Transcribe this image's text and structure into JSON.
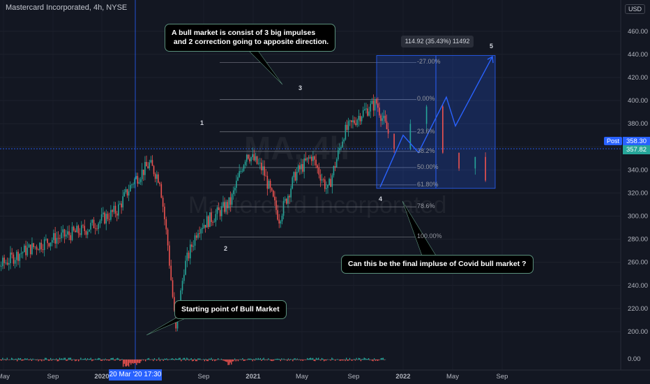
{
  "header": {
    "title": "Mastercard Incorporated, 4h, NYSE"
  },
  "currency": "USD",
  "watermark": {
    "ticker": "MA, 4h",
    "name": "Mastercard Incorporated"
  },
  "price_tags": {
    "post_label": "Post",
    "post_price": "358.30",
    "last_price": "357.82"
  },
  "crosshair_date": "20 Mar '20   17:30",
  "measure_label": "114.92 (35.43%) 11492",
  "callouts": {
    "top": "A bull market is consist of 3 big impulses\n and 2 correction going to apposite direction.",
    "bottom_left": "Starting point of Bull Market",
    "right": "Can this be the final impluse of Covid bull market ?"
  },
  "wave_labels": [
    "1",
    "2",
    "3",
    "4",
    "5"
  ],
  "fib_levels": [
    {
      "label": "-27.00%",
      "value": 433
    },
    {
      "label": "0.00%",
      "value": 401
    },
    {
      "label": "23.6%",
      "value": 373
    },
    {
      "label": "38.2%",
      "value": 356
    },
    {
      "label": "50.00%",
      "value": 342
    },
    {
      "label": "61.80%",
      "value": 327
    },
    {
      "label": "78.6%",
      "value": 308
    },
    {
      "label": "100.00%",
      "value": 282
    }
  ],
  "colors": {
    "background": "#131722",
    "up": "#26a69a",
    "down": "#ef5350",
    "accent": "#2962ff",
    "projection": "#2962ff"
  },
  "chart_data": {
    "type": "candlestick",
    "title": "Mastercard Incorporated, 4h, NYSE",
    "y_axis": {
      "ticks": [
        200,
        220,
        240,
        260,
        280,
        300,
        320,
        340,
        360,
        380,
        400,
        420,
        440,
        460
      ],
      "ylim": [
        187,
        467
      ]
    },
    "x_axis": {
      "ticks": [
        "May",
        "Sep",
        "2020",
        "Sep",
        "2021",
        "May",
        "Sep",
        "2022",
        "May",
        "Sep"
      ]
    },
    "price_path": [
      [
        "2019-03",
        255
      ],
      [
        "2019-04",
        250
      ],
      [
        "2019-06",
        268
      ],
      [
        "2019-08",
        280
      ],
      [
        "2019-10",
        288
      ],
      [
        "2019-12",
        305
      ],
      [
        "2020-01",
        330
      ],
      [
        "2020-02",
        345
      ],
      [
        "2020-02-20",
        332
      ],
      [
        "2020-03-05",
        275
      ],
      [
        "2020-03-20",
        200
      ],
      [
        "2020-04-05",
        255
      ],
      [
        "2020-05",
        290
      ],
      [
        "2020-06",
        300
      ],
      [
        "2020-07",
        312
      ],
      [
        "2020-08",
        355
      ],
      [
        "2020-09",
        340
      ],
      [
        "2020-10",
        298
      ],
      [
        "2020-11",
        336
      ],
      [
        "2020-12",
        352
      ],
      [
        "2021-01",
        322
      ],
      [
        "2021-02",
        372
      ],
      [
        "2021-03",
        388
      ],
      [
        "2021-04",
        398
      ],
      [
        "2021-05",
        362
      ],
      [
        "2021-06",
        375
      ],
      [
        "2021-07",
        392
      ],
      [
        "2021-08",
        362
      ],
      [
        "2021-09",
        340
      ],
      [
        "2021-10",
        352
      ],
      [
        "2021-10-20",
        330
      ],
      [
        "2021-11",
        355
      ]
    ],
    "projection_path": [
      [
        "2021-11",
        325
      ],
      [
        "2021-12",
        370
      ],
      [
        "2022-01",
        355
      ],
      [
        "2022-03",
        403
      ],
      [
        "2022-04",
        378
      ],
      [
        "2022-06",
        438
      ]
    ],
    "current_price": 357.82,
    "post_price": 358.3,
    "measure": {
      "from": 324,
      "to": 439,
      "change": 114.92,
      "percent": 35.43
    }
  }
}
